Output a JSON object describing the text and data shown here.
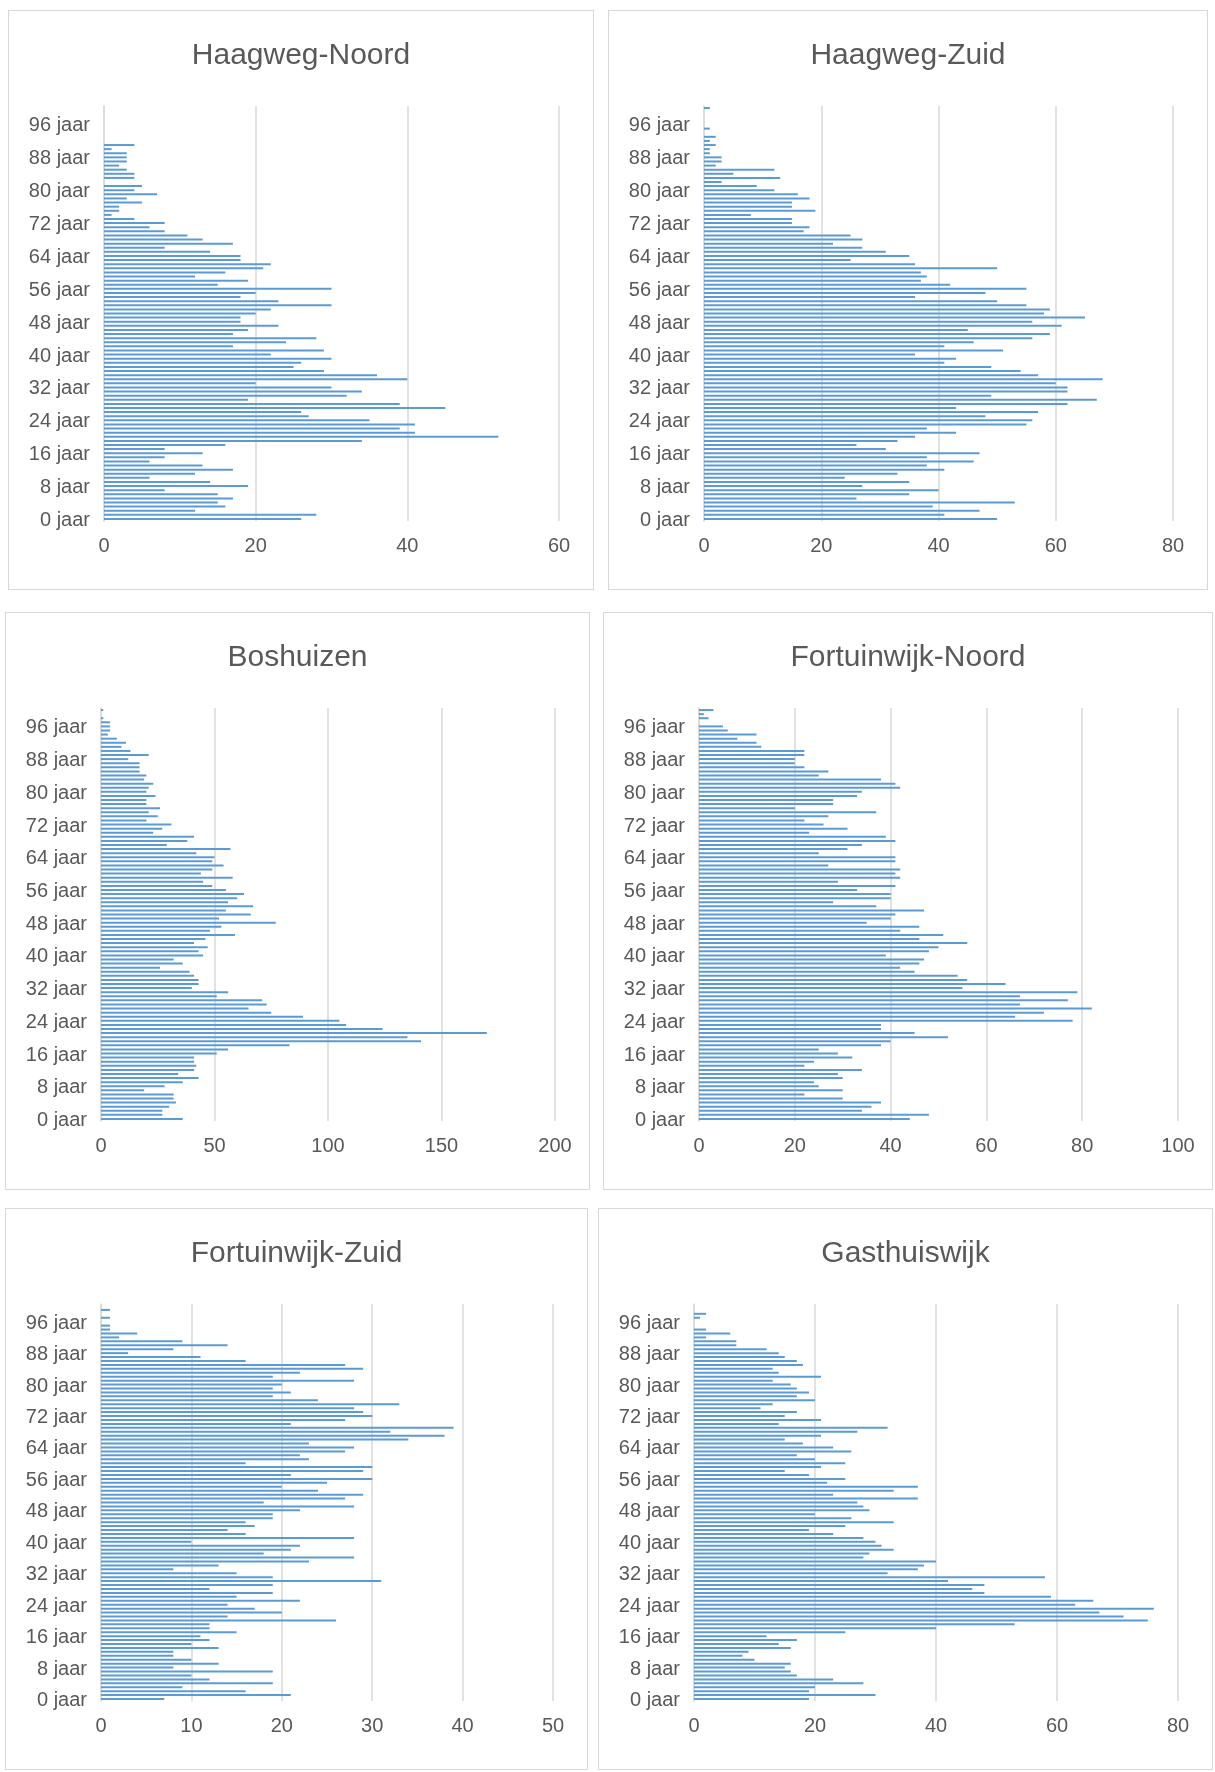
{
  "chart_data": [
    {
      "type": "bar",
      "orientation": "horizontal",
      "title": "Haagweg-Noord",
      "color": "#5b9bd5",
      "grid": "x",
      "xlim": [
        0,
        60
      ],
      "xticks": [
        0,
        20,
        40,
        60
      ],
      "categories": [
        null,
        null,
        null,
        null,
        "96 jaar",
        null,
        null,
        null,
        null,
        null,
        null,
        null,
        "88 jaar",
        null,
        null,
        null,
        null,
        null,
        null,
        null,
        "80 jaar",
        null,
        null,
        null,
        null,
        null,
        null,
        null,
        "72 jaar",
        null,
        null,
        null,
        null,
        null,
        null,
        null,
        "64 jaar",
        null,
        null,
        null,
        null,
        null,
        null,
        null,
        "56 jaar",
        null,
        null,
        null,
        null,
        null,
        null,
        null,
        "48 jaar",
        null,
        null,
        null,
        null,
        null,
        null,
        null,
        "40 jaar",
        null,
        null,
        null,
        null,
        null,
        null,
        null,
        "32 jaar",
        null,
        null,
        null,
        null,
        null,
        null,
        null,
        "24 jaar",
        null,
        null,
        null,
        null,
        null,
        null,
        null,
        "16 jaar",
        null,
        null,
        null,
        null,
        null,
        null,
        null,
        "8 jaar",
        null,
        null,
        null,
        null,
        null,
        null,
        null,
        "0 jaar"
      ],
      "values": [
        0,
        0,
        0,
        0,
        0,
        0,
        0,
        0,
        0,
        4,
        1,
        3,
        3,
        3,
        2,
        3,
        4,
        4,
        0,
        5,
        4,
        7,
        3,
        5,
        2,
        2,
        1,
        4,
        8,
        6,
        8,
        11,
        13,
        17,
        8,
        14,
        18,
        18,
        22,
        21,
        16,
        12,
        19,
        15,
        30,
        20,
        18,
        23,
        30,
        22,
        20,
        18,
        18,
        23,
        19,
        17,
        28,
        24,
        17,
        29,
        22,
        30,
        26,
        25,
        29,
        36,
        40,
        20,
        30,
        34,
        32,
        19,
        39,
        45,
        26,
        27,
        35,
        41,
        39,
        41,
        52,
        34,
        16,
        8,
        13,
        8,
        6,
        13,
        17,
        12,
        6,
        14,
        19,
        8,
        15,
        17,
        15,
        16,
        12,
        28,
        26
      ]
    },
    {
      "type": "bar",
      "orientation": "horizontal",
      "title": "Haagweg-Zuid",
      "color": "#5b9bd5",
      "grid": "x",
      "xlim": [
        0,
        80
      ],
      "xticks": [
        0,
        20,
        40,
        60,
        80
      ],
      "categories": [
        null,
        null,
        null,
        null,
        "96 jaar",
        null,
        null,
        null,
        null,
        null,
        null,
        null,
        "88 jaar",
        null,
        null,
        null,
        null,
        null,
        null,
        null,
        "80 jaar",
        null,
        null,
        null,
        null,
        null,
        null,
        null,
        "72 jaar",
        null,
        null,
        null,
        null,
        null,
        null,
        null,
        "64 jaar",
        null,
        null,
        null,
        null,
        null,
        null,
        null,
        "56 jaar",
        null,
        null,
        null,
        null,
        null,
        null,
        null,
        "48 jaar",
        null,
        null,
        null,
        null,
        null,
        null,
        null,
        "40 jaar",
        null,
        null,
        null,
        null,
        null,
        null,
        null,
        "32 jaar",
        null,
        null,
        null,
        null,
        null,
        null,
        null,
        "24 jaar",
        null,
        null,
        null,
        null,
        null,
        null,
        null,
        "16 jaar",
        null,
        null,
        null,
        null,
        null,
        null,
        null,
        "8 jaar",
        null,
        null,
        null,
        null,
        null,
        null,
        null,
        "0 jaar"
      ],
      "values": [
        1,
        0,
        0,
        0,
        0,
        1,
        0,
        2,
        1,
        2,
        1,
        1,
        3,
        3,
        2,
        12,
        5,
        13,
        3,
        9,
        12,
        16,
        18,
        15,
        15,
        19,
        8,
        15,
        15,
        18,
        17,
        25,
        27,
        22,
        27,
        31,
        35,
        25,
        36,
        50,
        37,
        38,
        37,
        42,
        55,
        48,
        36,
        50,
        55,
        59,
        58,
        65,
        56,
        61,
        45,
        59,
        56,
        46,
        41,
        51,
        36,
        43,
        41,
        49,
        54,
        57,
        68,
        60,
        62,
        62,
        49,
        67,
        62,
        43,
        57,
        48,
        56,
        55,
        38,
        43,
        36,
        33,
        26,
        31,
        47,
        38,
        46,
        38,
        41,
        33,
        24,
        35,
        27,
        40,
        35,
        26,
        53,
        39,
        47,
        41,
        50
      ]
    },
    {
      "type": "bar",
      "orientation": "horizontal",
      "title": "Boshuizen",
      "color": "#5b9bd5",
      "grid": "x",
      "xlim": [
        0,
        200
      ],
      "xticks": [
        0,
        50,
        100,
        150,
        200
      ],
      "categories": [
        null,
        null,
        null,
        null,
        "96 jaar",
        null,
        null,
        null,
        null,
        null,
        null,
        null,
        "88 jaar",
        null,
        null,
        null,
        null,
        null,
        null,
        null,
        "80 jaar",
        null,
        null,
        null,
        null,
        null,
        null,
        null,
        "72 jaar",
        null,
        null,
        null,
        null,
        null,
        null,
        null,
        "64 jaar",
        null,
        null,
        null,
        null,
        null,
        null,
        null,
        "56 jaar",
        null,
        null,
        null,
        null,
        null,
        null,
        null,
        "48 jaar",
        null,
        null,
        null,
        null,
        null,
        null,
        null,
        "40 jaar",
        null,
        null,
        null,
        null,
        null,
        null,
        null,
        "32 jaar",
        null,
        null,
        null,
        null,
        null,
        null,
        null,
        "24 jaar",
        null,
        null,
        null,
        null,
        null,
        null,
        null,
        "16 jaar",
        null,
        null,
        null,
        null,
        null,
        null,
        null,
        "8 jaar",
        null,
        null,
        null,
        null,
        null,
        null,
        null,
        "0 jaar"
      ],
      "values": [
        1,
        0,
        1,
        4,
        4,
        4,
        3,
        7,
        11,
        9,
        13,
        21,
        12,
        17,
        17,
        17,
        20,
        19,
        23,
        21,
        20,
        24,
        20,
        20,
        26,
        21,
        25,
        20,
        31,
        27,
        23,
        41,
        38,
        29,
        57,
        42,
        50,
        49,
        54,
        49,
        44,
        58,
        45,
        49,
        55,
        63,
        60,
        56,
        67,
        55,
        66,
        52,
        77,
        53,
        48,
        59,
        46,
        41,
        47,
        43,
        45,
        32,
        36,
        26,
        39,
        41,
        43,
        43,
        40,
        56,
        51,
        71,
        73,
        65,
        75,
        89,
        105,
        108,
        124,
        170,
        135,
        141,
        83,
        56,
        51,
        41,
        41,
        42,
        41,
        34,
        43,
        36,
        28,
        19,
        32,
        32,
        33,
        30,
        27,
        27,
        36
      ]
    },
    {
      "type": "bar",
      "orientation": "horizontal",
      "title": "Fortuinwijk-Noord",
      "color": "#5b9bd5",
      "grid": "x",
      "xlim": [
        0,
        100
      ],
      "xticks": [
        0,
        20,
        40,
        60,
        80,
        100
      ],
      "categories": [
        null,
        null,
        null,
        null,
        "96 jaar",
        null,
        null,
        null,
        null,
        null,
        null,
        null,
        "88 jaar",
        null,
        null,
        null,
        null,
        null,
        null,
        null,
        "80 jaar",
        null,
        null,
        null,
        null,
        null,
        null,
        null,
        "72 jaar",
        null,
        null,
        null,
        null,
        null,
        null,
        null,
        "64 jaar",
        null,
        null,
        null,
        null,
        null,
        null,
        null,
        "56 jaar",
        null,
        null,
        null,
        null,
        null,
        null,
        null,
        "48 jaar",
        null,
        null,
        null,
        null,
        null,
        null,
        null,
        "40 jaar",
        null,
        null,
        null,
        null,
        null,
        null,
        null,
        "32 jaar",
        null,
        null,
        null,
        null,
        null,
        null,
        null,
        "24 jaar",
        null,
        null,
        null,
        null,
        null,
        null,
        null,
        "16 jaar",
        null,
        null,
        null,
        null,
        null,
        null,
        null,
        "8 jaar",
        null,
        null,
        null,
        null,
        null,
        null,
        null,
        "0 jaar"
      ],
      "values": [
        3,
        1,
        2,
        0,
        5,
        6,
        12,
        8,
        12,
        13,
        22,
        22,
        20,
        20,
        22,
        27,
        25,
        38,
        41,
        42,
        34,
        33,
        28,
        28,
        20,
        37,
        27,
        22,
        26,
        31,
        23,
        39,
        41,
        34,
        31,
        25,
        41,
        41,
        27,
        42,
        41,
        42,
        29,
        41,
        33,
        40,
        40,
        28,
        37,
        47,
        41,
        40,
        35,
        46,
        42,
        51,
        46,
        56,
        50,
        48,
        39,
        47,
        46,
        42,
        45,
        54,
        56,
        64,
        55,
        79,
        67,
        77,
        67,
        82,
        72,
        66,
        78,
        38,
        38,
        45,
        52,
        40,
        38,
        25,
        29,
        32,
        24,
        22,
        34,
        29,
        30,
        24,
        25,
        30,
        22,
        30,
        38,
        36,
        34,
        48,
        44
      ]
    },
    {
      "type": "bar",
      "orientation": "horizontal",
      "title": "Fortuinwijk-Zuid",
      "color": "#5b9bd5",
      "grid": "x",
      "xlim": [
        0,
        50
      ],
      "xticks": [
        0,
        10,
        20,
        30,
        40,
        50
      ],
      "categories": [
        null,
        null,
        null,
        null,
        "96 jaar",
        null,
        null,
        null,
        null,
        null,
        null,
        null,
        "88 jaar",
        null,
        null,
        null,
        null,
        null,
        null,
        null,
        "80 jaar",
        null,
        null,
        null,
        null,
        null,
        null,
        null,
        "72 jaar",
        null,
        null,
        null,
        null,
        null,
        null,
        null,
        "64 jaar",
        null,
        null,
        null,
        null,
        null,
        null,
        null,
        "56 jaar",
        null,
        null,
        null,
        null,
        null,
        null,
        null,
        "48 jaar",
        null,
        null,
        null,
        null,
        null,
        null,
        null,
        "40 jaar",
        null,
        null,
        null,
        null,
        null,
        null,
        null,
        "32 jaar",
        null,
        null,
        null,
        null,
        null,
        null,
        null,
        "24 jaar",
        null,
        null,
        null,
        null,
        null,
        null,
        null,
        "16 jaar",
        null,
        null,
        null,
        null,
        null,
        null,
        null,
        "8 jaar",
        null,
        null,
        null,
        null,
        null,
        null,
        null,
        "0 jaar"
      ],
      "values": [
        0,
        1,
        0,
        1,
        0,
        1,
        1,
        4,
        2,
        9,
        14,
        8,
        3,
        11,
        16,
        27,
        29,
        22,
        19,
        28,
        20,
        19,
        21,
        19,
        24,
        33,
        28,
        29,
        30,
        27,
        21,
        39,
        32,
        38,
        34,
        23,
        28,
        27,
        22,
        23,
        16,
        30,
        29,
        21,
        30,
        25,
        20,
        24,
        29,
        27,
        18,
        28,
        22,
        19,
        19,
        16,
        17,
        14,
        16,
        28,
        10,
        22,
        21,
        18,
        28,
        23,
        13,
        8,
        15,
        19,
        31,
        19,
        12,
        19,
        15,
        22,
        14,
        17,
        20,
        14,
        26,
        12,
        12,
        15,
        11,
        12,
        10,
        13,
        8,
        8,
        10,
        13,
        8,
        19,
        10,
        12,
        19,
        9,
        16,
        21,
        7
      ]
    },
    {
      "type": "bar",
      "orientation": "horizontal",
      "title": "Gasthuiswijk",
      "color": "#5b9bd5",
      "grid": "x",
      "xlim": [
        0,
        80
      ],
      "xticks": [
        0,
        20,
        40,
        60,
        80
      ],
      "categories": [
        null,
        null,
        null,
        null,
        "96 jaar",
        null,
        null,
        null,
        null,
        null,
        null,
        null,
        "88 jaar",
        null,
        null,
        null,
        null,
        null,
        null,
        null,
        "80 jaar",
        null,
        null,
        null,
        null,
        null,
        null,
        null,
        "72 jaar",
        null,
        null,
        null,
        null,
        null,
        null,
        null,
        "64 jaar",
        null,
        null,
        null,
        null,
        null,
        null,
        null,
        "56 jaar",
        null,
        null,
        null,
        null,
        null,
        null,
        null,
        "48 jaar",
        null,
        null,
        null,
        null,
        null,
        null,
        null,
        "40 jaar",
        null,
        null,
        null,
        null,
        null,
        null,
        null,
        "32 jaar",
        null,
        null,
        null,
        null,
        null,
        null,
        null,
        "24 jaar",
        null,
        null,
        null,
        null,
        null,
        null,
        null,
        "16 jaar",
        null,
        null,
        null,
        null,
        null,
        null,
        null,
        "8 jaar",
        null,
        null,
        null,
        null,
        null,
        null,
        null,
        "0 jaar"
      ],
      "values": [
        0,
        0,
        2,
        1,
        0,
        0,
        2,
        6,
        2,
        7,
        7,
        12,
        14,
        15,
        17,
        18,
        13,
        14,
        21,
        13,
        16,
        17,
        19,
        17,
        20,
        13,
        11,
        17,
        15,
        21,
        14,
        32,
        27,
        21,
        15,
        18,
        23,
        26,
        17,
        20,
        25,
        21,
        15,
        19,
        25,
        22,
        37,
        33,
        23,
        37,
        27,
        28,
        29,
        20,
        26,
        33,
        25,
        19,
        23,
        28,
        30,
        31,
        33,
        29,
        28,
        40,
        38,
        37,
        32,
        58,
        42,
        48,
        46,
        48,
        59,
        66,
        63,
        76,
        67,
        71,
        75,
        53,
        40,
        25,
        12,
        17,
        14,
        16,
        9,
        8,
        10,
        16,
        15,
        16,
        17,
        23,
        28,
        20,
        19,
        30,
        19
      ]
    }
  ]
}
